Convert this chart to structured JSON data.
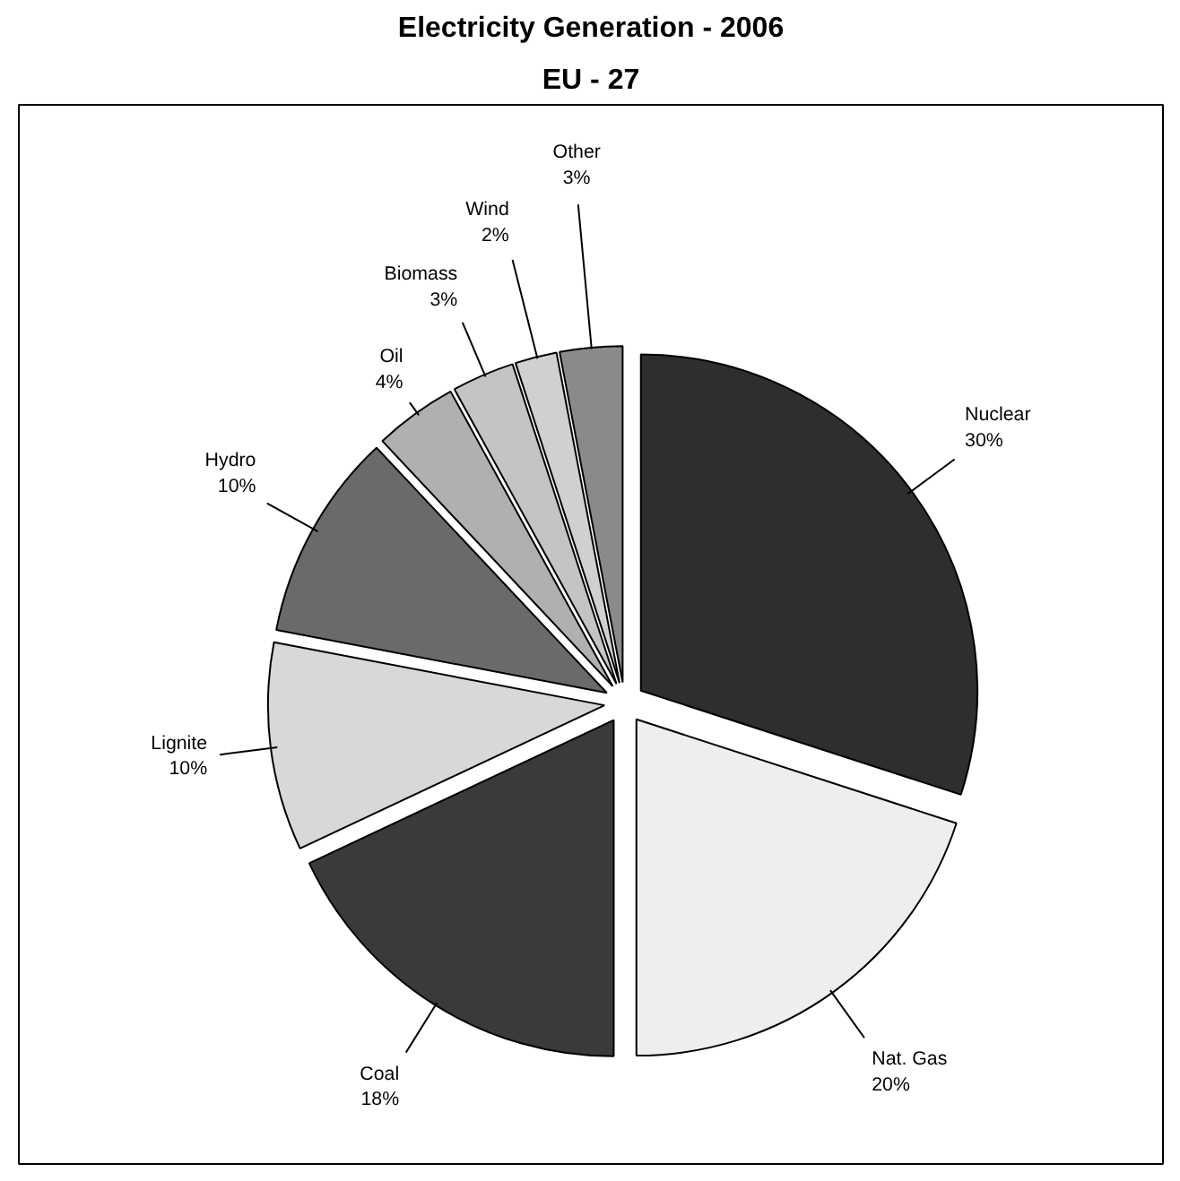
{
  "chart_data": {
    "type": "pie",
    "title": "Electricity Generation - 2006",
    "subtitle": "EU - 27",
    "categories": [
      "Nuclear",
      "Nat. Gas",
      "Coal",
      "Lignite",
      "Hydro",
      "Oil",
      "Biomass",
      "Wind",
      "Other"
    ],
    "values": [
      30,
      20,
      18,
      10,
      10,
      4,
      3,
      2,
      3
    ],
    "value_labels": [
      "30%",
      "20%",
      "18%",
      "10%",
      "10%",
      "4%",
      "3%",
      "2%",
      "3%"
    ],
    "colors": [
      "#2e2e2e",
      "#eeeeee",
      "#3a3a3a",
      "#d8d8d8",
      "#6a6a6a",
      "#b0b0b0",
      "#c4c4c4",
      "#d0d0d0",
      "#8a8a8a"
    ]
  }
}
